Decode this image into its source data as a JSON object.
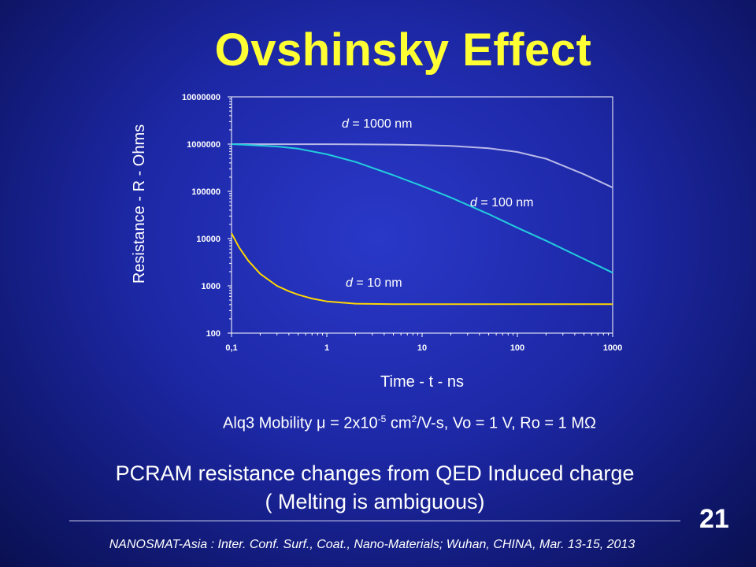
{
  "slide": {
    "title": "Ovshinsky Effect",
    "caption": {
      "prefix": "Alq3 Mobility ",
      "mu_symbol": "μ",
      "middle": " = 2x10",
      "exp1": "-5",
      "middle2": " cm",
      "exp2": "2",
      "suffix": "/V-s, Vo = 1 V, Ro = 1 M",
      "ohm_symbol": "Ω"
    },
    "summary_line1": "PCRAM resistance changes from QED Induced charge",
    "summary_line2": "( Melting  is ambiguous)",
    "slide_number": "21",
    "footer": "NANOSMAT-Asia : Inter. Conf. Surf., Coat., Nano-Materials; Wuhan, CHINA, Mar. 13-15, 2013"
  },
  "chart_data": {
    "type": "line",
    "x_scale": "log",
    "y_scale": "log",
    "xlim": [
      0.1,
      1000
    ],
    "ylim": [
      100,
      10000000
    ],
    "xlabel": "Time - t - ns",
    "ylabel": "Resistance - R - Ohms",
    "x_ticks": [
      0.1,
      1,
      10,
      100,
      1000
    ],
    "x_tick_labels": [
      "0,1",
      "1",
      "10",
      "100",
      "1000"
    ],
    "y_ticks": [
      100,
      1000,
      10000,
      100000,
      1000000,
      10000000
    ],
    "y_tick_labels": [
      "100",
      "1000",
      "10000",
      "100000",
      "1000000",
      "10000000"
    ],
    "series": [
      {
        "name": "d = 1000 nm",
        "label_prefix": "d",
        "label_suffix": " = 1000 nm",
        "color": "#b8b8e8",
        "x": [
          0.1,
          0.5,
          1,
          2,
          5,
          10,
          20,
          50,
          100,
          200,
          500,
          1000
        ],
        "y": [
          1000000,
          998000,
          995000,
          990000,
          977000,
          955000,
          920000,
          820000,
          680000,
          490000,
          230000,
          120000
        ]
      },
      {
        "name": "d = 100 nm",
        "label_prefix": "d",
        "label_suffix": " = 100 nm",
        "color": "#22ccdd",
        "x": [
          0.1,
          0.3,
          0.5,
          1,
          2,
          5,
          10,
          20,
          50,
          100,
          200,
          500,
          1000
        ],
        "y": [
          1000000,
          890000,
          800000,
          610000,
          420000,
          220000,
          130000,
          74000,
          33000,
          17000,
          9000,
          3700,
          1900
        ]
      },
      {
        "name": "d = 10 nm",
        "label_prefix": "d",
        "label_suffix": " = 10 nm",
        "color": "#ffd700",
        "x": [
          0.1,
          0.12,
          0.15,
          0.2,
          0.3,
          0.4,
          0.5,
          0.7,
          1,
          2,
          5,
          10,
          100,
          1000
        ],
        "y": [
          13000,
          6500,
          3400,
          1800,
          1000,
          770,
          650,
          540,
          470,
          420,
          410,
          410,
          410,
          410
        ]
      }
    ]
  }
}
